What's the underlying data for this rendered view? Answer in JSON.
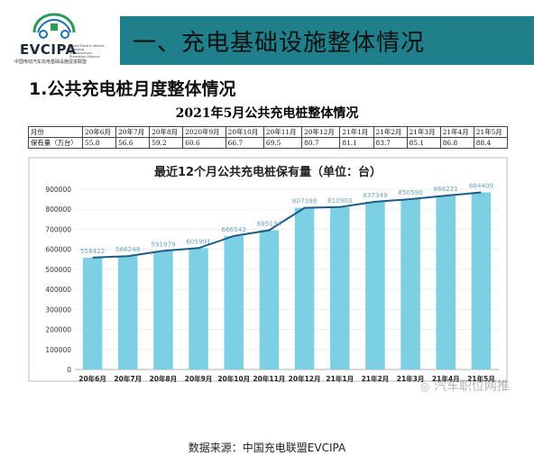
{
  "header": {
    "logo_title": "EVCIPA",
    "logo_en": "China Electric Vehicle Charging Infrastructure Promotion Alliance",
    "logo_cn": "中国电动汽车充电基础设施促进联盟",
    "banner_title": "一、充电基础设施整体情况"
  },
  "section_title": "1.公共充电桩月度整体情况",
  "table": {
    "title": "2021年5月公共充电桩整体情况",
    "row_label_month": "月份",
    "row_label_value": "保有量（万台）",
    "months": [
      "20年6月",
      "20年7月",
      "20年8月",
      "2020年9月",
      "20年10月",
      "20年11月",
      "20年12月",
      "21年1月",
      "21年2月",
      "21年3月",
      "21年4月",
      "21年5月"
    ],
    "values": [
      "55.8",
      "56.6",
      "59.2",
      "60.6",
      "66.7",
      "69.5",
      "80.7",
      "81.1",
      "83.7",
      "85.1",
      "86.8",
      "88.4"
    ]
  },
  "chart_data": {
    "type": "bar",
    "title": "最近12个月公共充电桩保有量（单位：台）",
    "categories": [
      "20年6月",
      "20年7月",
      "20年8月",
      "20年9月",
      "20年10月",
      "20年11月",
      "20年12月",
      "21年1月",
      "21年2月",
      "21年3月",
      "21年4月",
      "21年5月"
    ],
    "values": [
      558422,
      566248,
      591979,
      605991,
      666543,
      695194,
      807398,
      810903,
      837349,
      850590,
      868221,
      884409
    ],
    "y_ticks": [
      "0",
      "100000",
      "200000",
      "300000",
      "400000",
      "500000",
      "600000",
      "700000",
      "800000",
      "900000"
    ],
    "ylim": [
      0,
      900000
    ],
    "trend_line": true,
    "bar_color": "#7dcfe3",
    "line_color": "#1b5c85"
  },
  "source": "数据来源：中国充电联盟EVCIPA",
  "watermark": "汽车职位网推"
}
